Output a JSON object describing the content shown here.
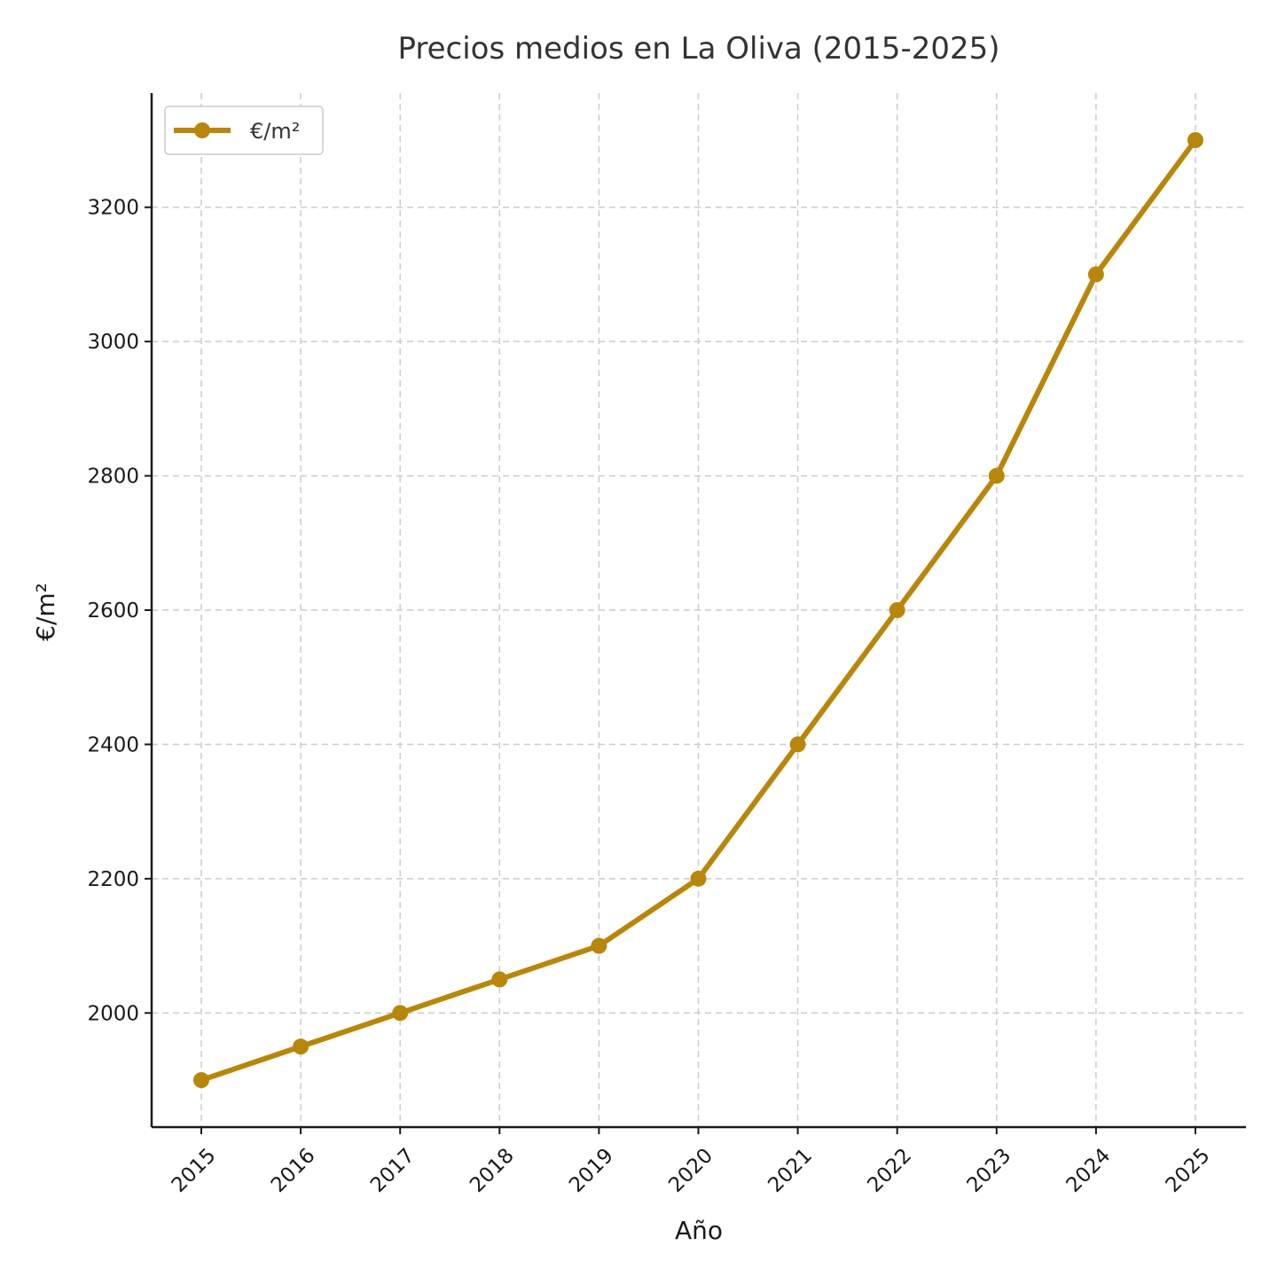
{
  "chart_data": {
    "type": "line",
    "title": "Precios medios en La Oliva (2015-2025)",
    "xlabel": "Año",
    "ylabel": "€/m²",
    "x": [
      "2015",
      "2016",
      "2017",
      "2018",
      "2019",
      "2020",
      "2021",
      "2022",
      "2023",
      "2024",
      "2025"
    ],
    "series": [
      {
        "name": "€/m²",
        "color": "#b8860b",
        "values": [
          1900,
          1950,
          2000,
          2050,
          2100,
          2200,
          2400,
          2600,
          2800,
          3100,
          3300
        ]
      }
    ],
    "yticks": [
      2000,
      2200,
      2400,
      2600,
      2800,
      3000,
      3200
    ],
    "ylim": [
      1830,
      3370
    ],
    "grid": true,
    "legend": "top-left",
    "xtick_rotation": 45
  }
}
